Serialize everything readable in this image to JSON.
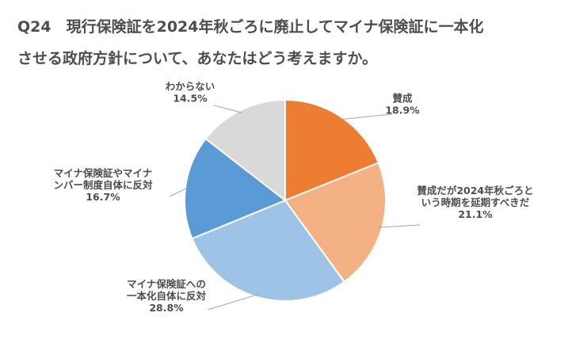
{
  "title_lines": [
    "Q24　現行保険証を2024年秋ごろに廃止してマイナ保険証に一本化",
    "させる政府方針について、あなたはどう考えますか。"
  ],
  "chart_data": {
    "type": "pie",
    "start_angle": "12 o'clock",
    "direction": "clockwise",
    "slices": [
      {
        "label_lines": [
          "賛成"
        ],
        "value": 18.9,
        "value_label": "18.9%",
        "color": "#ED7D31"
      },
      {
        "label_lines": [
          "賛成だが2024年秋ごろと",
          "いう時期を延期すべきだ"
        ],
        "value": 21.1,
        "value_label": "21.1%",
        "color": "#F4B183"
      },
      {
        "label_lines": [
          "マイナ保険証への",
          "一本化自体に反対"
        ],
        "value": 28.8,
        "value_label": "28.8%",
        "color": "#9DC3E6"
      },
      {
        "label_lines": [
          "マイナ保険証やマイナ",
          "ンバー制度自体に反対"
        ],
        "value": 16.7,
        "value_label": "16.7%",
        "color": "#5B9BD5"
      },
      {
        "label_lines": [
          "わからない"
        ],
        "value": 14.5,
        "value_label": "14.5%",
        "color": "#D9D9D9"
      }
    ]
  }
}
